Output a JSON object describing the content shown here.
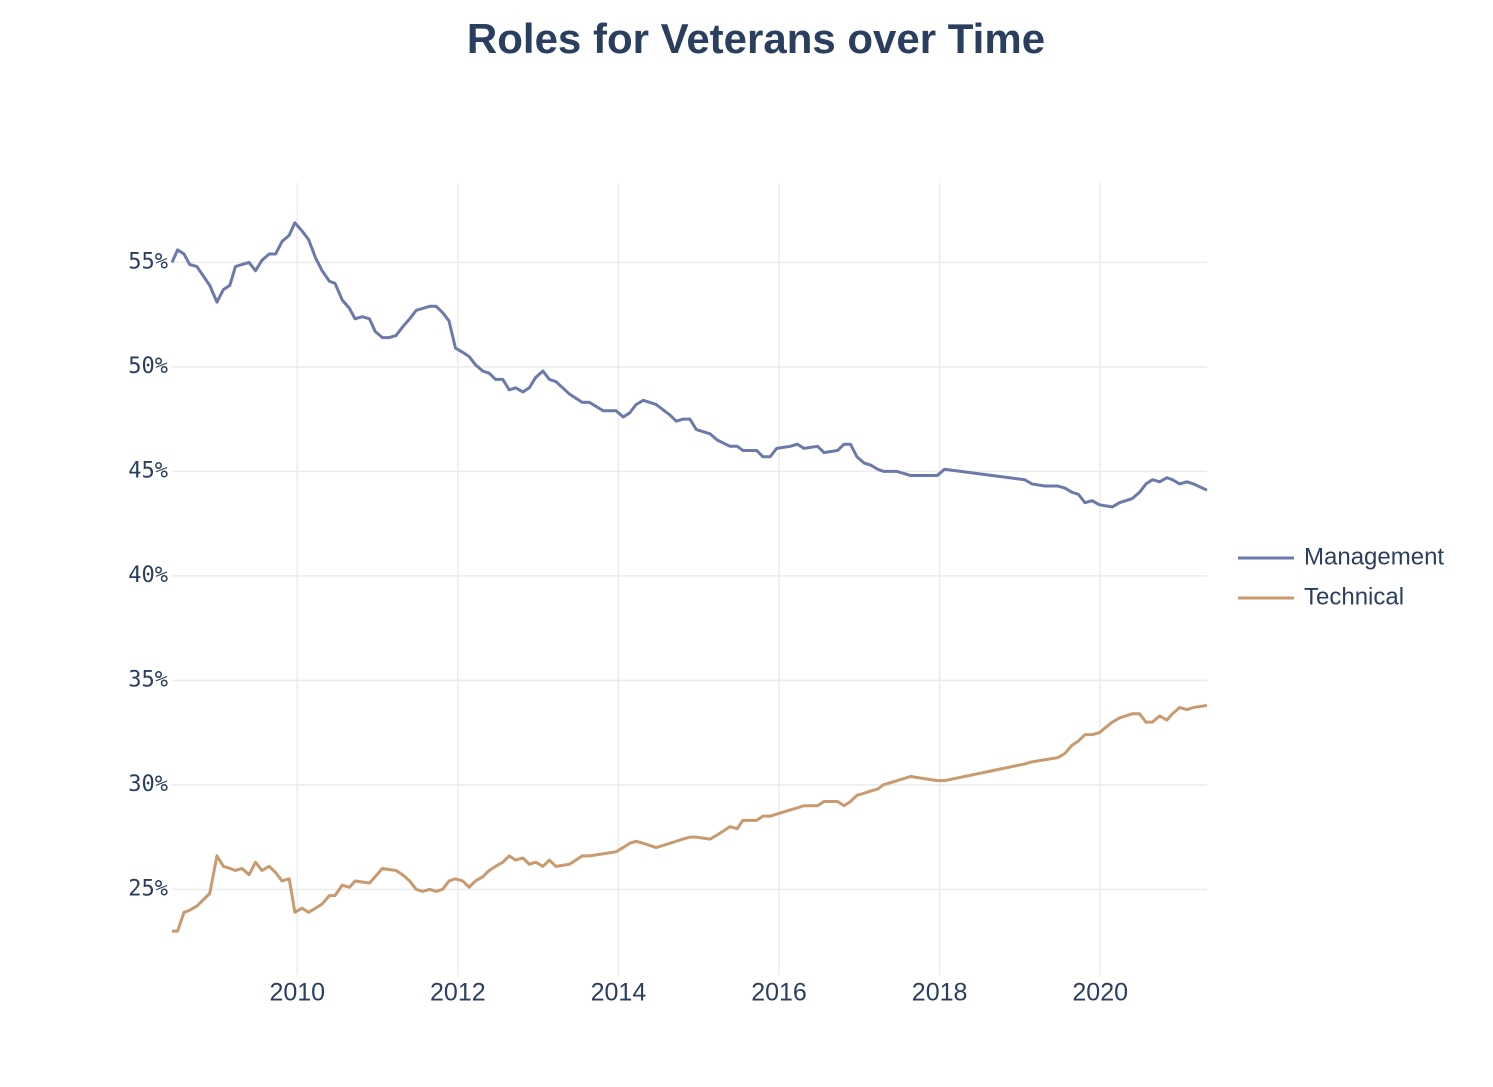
{
  "chart_data": {
    "type": "line",
    "title": "Roles for Veterans over Time",
    "x": [
      2008.44,
      2008.51,
      2008.59,
      2008.66,
      2008.75,
      2008.91,
      2009.0,
      2009.08,
      2009.16,
      2009.23,
      2009.31,
      2009.4,
      2009.48,
      2009.56,
      2009.65,
      2009.73,
      2009.81,
      2009.9,
      2009.97,
      2010.06,
      2010.14,
      2010.23,
      2010.31,
      2010.4,
      2010.47,
      2010.56,
      2010.65,
      2010.72,
      2010.81,
      2010.9,
      2010.97,
      2011.06,
      2011.14,
      2011.23,
      2011.31,
      2011.4,
      2011.48,
      2011.56,
      2011.65,
      2011.73,
      2011.81,
      2011.89,
      2011.97,
      2012.06,
      2012.14,
      2012.22,
      2012.31,
      2012.39,
      2012.47,
      2012.56,
      2012.64,
      2012.72,
      2012.81,
      2012.89,
      2012.97,
      2013.06,
      2013.14,
      2013.22,
      2013.39,
      2013.55,
      2013.64,
      2013.81,
      2013.97,
      2014.06,
      2014.14,
      2014.22,
      2014.31,
      2014.39,
      2014.47,
      2014.64,
      2014.72,
      2014.8,
      2014.89,
      2014.97,
      2015.14,
      2015.23,
      2015.39,
      2015.48,
      2015.55,
      2015.64,
      2015.72,
      2015.8,
      2015.89,
      2015.97,
      2016.14,
      2016.23,
      2016.31,
      2016.48,
      2016.56,
      2016.73,
      2016.81,
      2016.89,
      2016.97,
      2017.06,
      2017.14,
      2017.23,
      2017.3,
      2017.47,
      2017.64,
      2017.97,
      2018.06,
      2019.06,
      2019.15,
      2019.31,
      2019.47,
      2019.56,
      2019.65,
      2019.73,
      2019.81,
      2019.9,
      2019.99,
      2020.15,
      2020.24,
      2020.4,
      2020.49,
      2020.57,
      2020.65,
      2020.74,
      2020.83,
      2020.9,
      2020.99,
      2021.08,
      2021.16,
      2021.33
    ],
    "series": [
      {
        "name": "Management",
        "color": "#6b79ab",
        "values": [
          55.0,
          55.6,
          55.4,
          54.9,
          54.8,
          53.9,
          53.1,
          53.7,
          53.9,
          54.8,
          54.9,
          55.0,
          54.6,
          55.1,
          55.4,
          55.4,
          56.0,
          56.3,
          56.9,
          56.5,
          56.1,
          55.2,
          54.6,
          54.1,
          54.0,
          53.2,
          52.8,
          52.3,
          52.4,
          52.3,
          51.7,
          51.4,
          51.4,
          51.5,
          51.9,
          52.3,
          52.7,
          52.8,
          52.9,
          52.9,
          52.6,
          52.2,
          50.9,
          50.7,
          50.5,
          50.1,
          49.8,
          49.7,
          49.4,
          49.4,
          48.9,
          49.0,
          48.8,
          49.0,
          49.5,
          49.8,
          49.4,
          49.3,
          48.7,
          48.3,
          48.3,
          47.9,
          47.9,
          47.6,
          47.8,
          48.2,
          48.4,
          48.3,
          48.2,
          47.7,
          47.4,
          47.5,
          47.5,
          47.0,
          46.8,
          46.5,
          46.2,
          46.2,
          46.0,
          46.0,
          46.0,
          45.7,
          45.7,
          46.1,
          46.2,
          46.3,
          46.1,
          46.2,
          45.9,
          46.0,
          46.3,
          46.3,
          45.7,
          45.4,
          45.3,
          45.1,
          45.0,
          45.0,
          44.8,
          44.8,
          45.1,
          44.6,
          44.4,
          44.3,
          44.3,
          44.2,
          44.0,
          43.9,
          43.5,
          43.6,
          43.4,
          43.3,
          43.5,
          43.7,
          44.0,
          44.4,
          44.6,
          44.5,
          44.7,
          44.6,
          44.4,
          44.5,
          44.4,
          44.1
        ]
      },
      {
        "name": "Technical",
        "color": "#c99a6e",
        "values": [
          23.0,
          23.0,
          23.9,
          24.0,
          24.2,
          24.8,
          26.6,
          26.1,
          26.0,
          25.9,
          26.0,
          25.7,
          26.3,
          25.9,
          26.1,
          25.8,
          25.4,
          25.5,
          23.9,
          24.1,
          23.9,
          24.1,
          24.3,
          24.7,
          24.7,
          25.2,
          25.1,
          25.4,
          25.35,
          25.3,
          25.6,
          26.0,
          25.95,
          25.9,
          25.7,
          25.4,
          25.0,
          24.9,
          25.0,
          24.9,
          25.0,
          25.4,
          25.5,
          25.4,
          25.1,
          25.4,
          25.6,
          25.9,
          26.1,
          26.3,
          26.6,
          26.4,
          26.5,
          26.2,
          26.3,
          26.1,
          26.4,
          26.1,
          26.2,
          26.6,
          26.6,
          26.7,
          26.8,
          27.0,
          27.2,
          27.3,
          27.2,
          27.1,
          27.0,
          27.2,
          27.3,
          27.4,
          27.5,
          27.5,
          27.4,
          27.6,
          28.0,
          27.9,
          28.3,
          28.3,
          28.3,
          28.5,
          28.5,
          28.6,
          28.8,
          28.9,
          29.0,
          29.0,
          29.2,
          29.2,
          29.0,
          29.2,
          29.5,
          29.6,
          29.7,
          29.8,
          30.0,
          30.2,
          30.4,
          30.2,
          30.2,
          31.0,
          31.1,
          31.2,
          31.3,
          31.5,
          31.9,
          32.1,
          32.4,
          32.4,
          32.5,
          33.0,
          33.2,
          33.4,
          33.4,
          33.0,
          33.0,
          33.3,
          33.1,
          33.4,
          33.7,
          33.6,
          33.7,
          33.8
        ]
      }
    ],
    "xlim": [
      2008.44,
      2021.33
    ],
    "xticks": [
      2010,
      2012,
      2014,
      2016,
      2018,
      2020
    ],
    "ylim": [
      20.9,
      58.8
    ],
    "yticks": [
      {
        "value": 25,
        "label": "25%"
      },
      {
        "value": 30,
        "label": "30%"
      },
      {
        "value": 35,
        "label": "35%"
      },
      {
        "value": 40,
        "label": "40%"
      },
      {
        "value": 45,
        "label": "45%"
      },
      {
        "value": 50,
        "label": "50%"
      },
      {
        "value": 55,
        "label": "55%"
      }
    ],
    "grid": true,
    "legend": "right"
  }
}
